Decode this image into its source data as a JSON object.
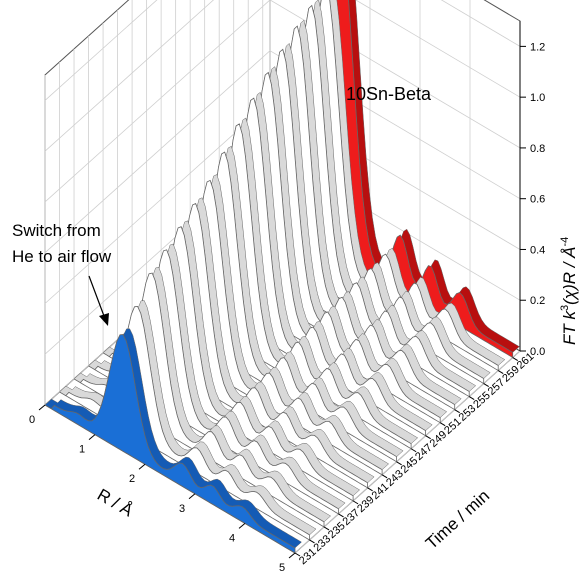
{
  "chart_data": {
    "type": "area",
    "title": "",
    "x_label": "R / Å",
    "y_label": "Time / min",
    "z_label_prefix": "FT k",
    "z_label_sup1": "3",
    "z_label_mid": "(χ)R / Å",
    "z_label_sup2": "-4",
    "x_ticks": [
      "0",
      "1",
      "2",
      "3",
      "4",
      "5"
    ],
    "x_range": [
      0,
      5
    ],
    "y_ticks": [
      "231",
      "233",
      "235",
      "237",
      "239",
      "241",
      "243",
      "245",
      "247",
      "249",
      "251",
      "253",
      "255",
      "257",
      "259",
      "261"
    ],
    "y_range": [
      231,
      262
    ],
    "z_ticks": [
      "0.0",
      "0.2",
      "0.4",
      "0.6",
      "0.8",
      "1.0",
      "1.2"
    ],
    "z_range": [
      0,
      1.3
    ],
    "grid": true,
    "annotation": {
      "text_line1": "Switch from",
      "text_line2": "He to air flow",
      "time": 231
    },
    "series_label": "10Sn-Beta",
    "colors": {
      "first": "#1a6fd6",
      "last": "#ee1c1c",
      "middle": "#ffffff",
      "edge": "#666666"
    },
    "series": [
      {
        "time": 231,
        "peak": 0.44
      },
      {
        "time": 233,
        "peak": 0.5
      },
      {
        "time": 235,
        "peak": 0.58
      },
      {
        "time": 237,
        "peak": 0.62
      },
      {
        "time": 239,
        "peak": 0.66
      },
      {
        "time": 241,
        "peak": 0.7
      },
      {
        "time": 243,
        "peak": 0.74
      },
      {
        "time": 245,
        "peak": 0.8
      },
      {
        "time": 247,
        "peak": 0.86
      },
      {
        "time": 249,
        "peak": 0.91
      },
      {
        "time": 251,
        "peak": 0.96
      },
      {
        "time": 253,
        "peak": 1.0
      },
      {
        "time": 255,
        "peak": 1.04
      },
      {
        "time": 257,
        "peak": 1.07
      },
      {
        "time": 259,
        "peak": 1.1
      },
      {
        "time": 261,
        "peak": 1.25
      }
    ]
  }
}
